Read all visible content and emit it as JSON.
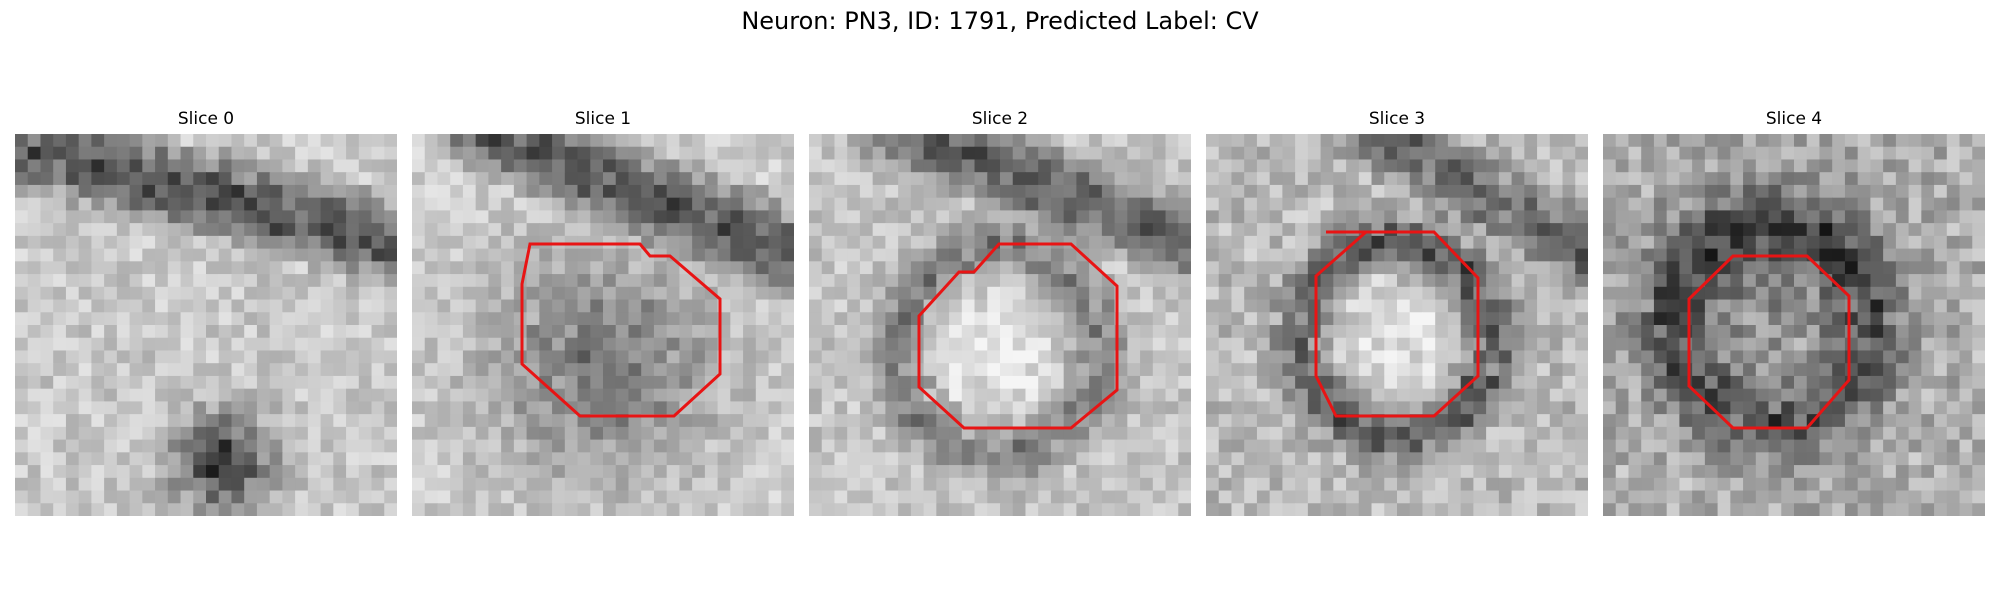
{
  "figure": {
    "title": "Neuron: PN3, ID: 1791, Predicted Label: CV",
    "colors": {
      "contour": "#e81414",
      "background": "#ffffff"
    },
    "colormap": "grayscale",
    "grid_size": 30
  },
  "slices": [
    {
      "title": "Slice 0",
      "has_contour": false
    },
    {
      "title": "Slice 1",
      "has_contour": true
    },
    {
      "title": "Slice 2",
      "has_contour": true
    },
    {
      "title": "Slice 3",
      "has_contour": true
    },
    {
      "title": "Slice 4",
      "has_contour": true
    }
  ]
}
